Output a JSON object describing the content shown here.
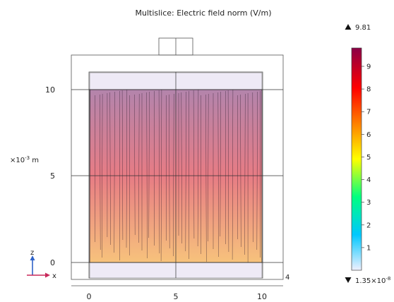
{
  "plot": {
    "title": "Multislice: Electric field norm (V/m)",
    "x_ticks": [
      "0",
      "5",
      "10"
    ],
    "x_tick_values": [
      0,
      5,
      10
    ],
    "x_edge_label": "4",
    "z_ticks": [
      "0",
      "5",
      "10"
    ],
    "z_tick_values": [
      0,
      5,
      10
    ],
    "z_scale_label": "×10",
    "z_scale_exponent": "-3",
    "z_unit": " m",
    "axis_triad": {
      "z": "z",
      "x": "x"
    }
  },
  "colorbar": {
    "max_label": "9.81",
    "min_label": "1.35×10",
    "min_exponent": "-8",
    "max_value": 9.81,
    "min_value": 0,
    "ticks": [
      "1",
      "2",
      "3",
      "4",
      "5",
      "6",
      "7",
      "8",
      "9"
    ],
    "tick_values": [
      1,
      2,
      3,
      4,
      5,
      6,
      7,
      8,
      9
    ],
    "colors": [
      "#f0f0ff",
      "#00c8ff",
      "#00ff80",
      "#ffff00",
      "#ff8000",
      "#ff0000",
      "#8b0046"
    ]
  },
  "field_fill_colors": {
    "top": "#b384ac",
    "middle": "#e77c84",
    "bottom": "#f7c27c"
  }
}
